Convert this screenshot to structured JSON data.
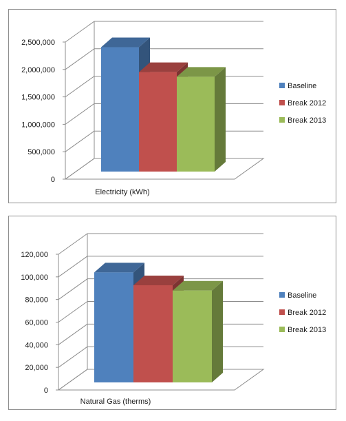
{
  "chart_data": [
    {
      "type": "bar",
      "title": "",
      "xlabel": "",
      "ylabel": "",
      "categories": [
        "Electricity (kWh)"
      ],
      "ylim": [
        0,
        2500000
      ],
      "yticks": [
        "0",
        "500,000",
        "1,000,000",
        "1,500,000",
        "2,000,000",
        "2,500,000"
      ],
      "legend_position": "right",
      "grid": true,
      "series": [
        {
          "name": "Baseline",
          "values": [
            2400000
          ],
          "color": "#4f81bd"
        },
        {
          "name": "Break 2012",
          "values": [
            1920000
          ],
          "color": "#c0504d"
        },
        {
          "name": "Break 2013",
          "values": [
            1830000
          ],
          "color": "#9bbb59"
        }
      ]
    },
    {
      "type": "bar",
      "title": "",
      "xlabel": "",
      "ylabel": "",
      "categories": [
        "Natural Gas (therms)"
      ],
      "ylim": [
        0,
        120000
      ],
      "yticks": [
        "0",
        "20,000",
        "40,000",
        "60,000",
        "80,000",
        "100,000",
        "120,000"
      ],
      "legend_position": "right",
      "grid": true,
      "series": [
        {
          "name": "Baseline",
          "values": [
            103000
          ],
          "color": "#4f81bd"
        },
        {
          "name": "Break 2012",
          "values": [
            91000
          ],
          "color": "#c0504d"
        },
        {
          "name": "Break 2013",
          "values": [
            86000
          ],
          "color": "#9bbb59"
        }
      ]
    }
  ]
}
